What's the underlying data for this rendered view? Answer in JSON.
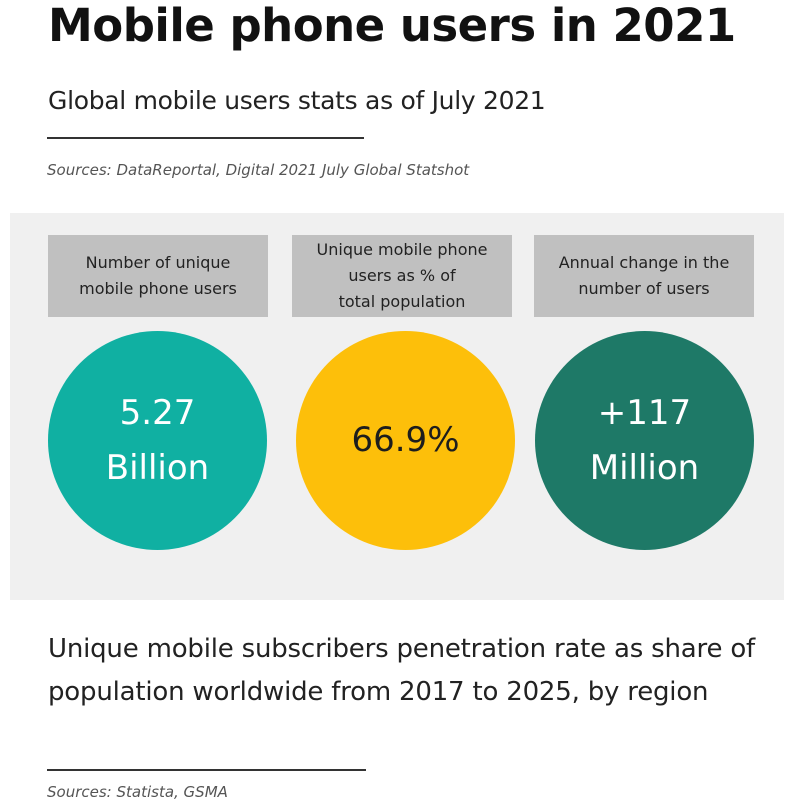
{
  "header": {
    "title": "Mobile phone users in 2021",
    "subtitle": "Global mobile users stats as of July 2021",
    "source": "Sources: DataReportal, Digital 2021 July Global Statshot"
  },
  "stats": [
    {
      "label": "Number of unique\nmobile phone users",
      "value": "5.27\nBillion",
      "color": "#10b0a2"
    },
    {
      "label": "Unique mobile phone\nusers as % of\ntotal population",
      "value": "66.9%",
      "color": "#fdbf0a"
    },
    {
      "label": "Annual change in the\nnumber of users",
      "value": "+117\nMillion",
      "color": "#1e7967"
    }
  ],
  "colors": {
    "panel_background": "#f0f0f0",
    "label_background": "#c0c0c0",
    "rule": "#333333"
  },
  "penetration_section": {
    "heading": "Unique mobile subscribers penetration rate as share of population worldwide from 2017 to 2025, by region",
    "source": "Sources: Statista, GSMA"
  }
}
